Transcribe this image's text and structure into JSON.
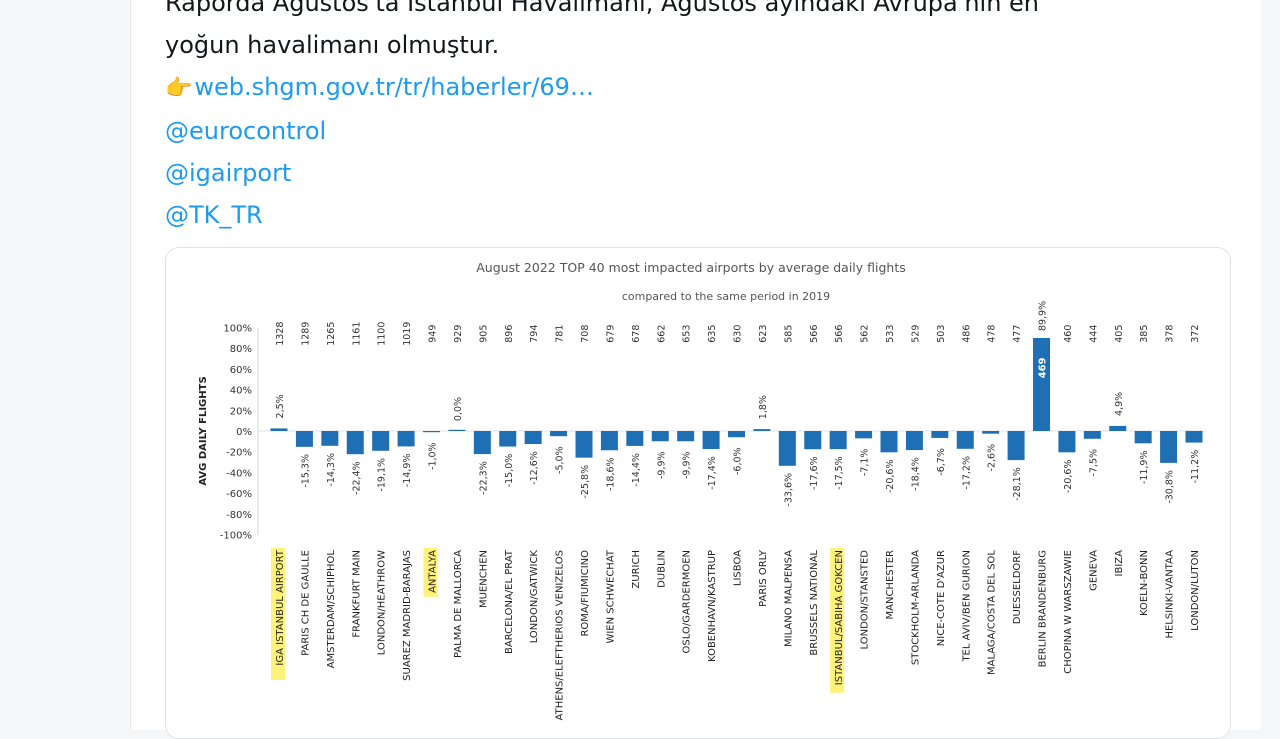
{
  "tweet": {
    "line1": "Raporda Ağustos'ta İstanbul Havalimanı, Ağustos ayındaki Avrupa'nın en",
    "line2": "yoğun havalimanı olmuştur.",
    "link_icon": "pointing-hand-icon",
    "link_text": "web.shgm.gov.tr/tr/haberler/69…",
    "mentions": [
      "@eurocontrol",
      "@igairport",
      "@TK_TR"
    ]
  },
  "colors": {
    "bar": "#1f6fb5",
    "link": "#1d9bf0",
    "highlight": "#fff27a"
  },
  "chart_data": {
    "type": "bar",
    "title": "August 2022 TOP 40 most impacted airports by average daily flights",
    "subtitle": "compared to the same period in 2019",
    "ylabel": "AVG DAILY FLIGHTS",
    "ylim": [
      -100,
      100
    ],
    "yticks": [
      "100%",
      "80%",
      "60%",
      "40%",
      "20%",
      "0%",
      "-20%",
      "-40%",
      "-60%",
      "-80%",
      "-100%"
    ],
    "grid": false,
    "highlighted": [
      "IGA ISTANBUL AIRPORT",
      "ANTALYA",
      "ISTANBUL/SABIHA GOKCEN"
    ],
    "categories": [
      "IGA ISTANBUL AIRPORT",
      "PARIS CH DE GAULLE",
      "AMSTERDAM/SCHIPHOL",
      "FRANKFURT MAIN",
      "LONDON/HEATHROW",
      "SUAREZ MADRID-BARAJAS",
      "ANTALYA",
      "PALMA DE MALLORCA",
      "MUENCHEN",
      "BARCELONA/EL PRAT",
      "LONDON/GATWICK",
      "ATHENS/ELEFTHERIOS VENIZELOS",
      "ROMA/FIUMICINO",
      "WIEN SCHWECHAT",
      "ZURICH",
      "DUBLIN",
      "OSLO/GARDERMOEN",
      "KOBENHAVN/KASTRUP",
      "LISBOA",
      "PARIS ORLY",
      "MILANO MALPENSA",
      "BRUSSELS NATIONAL",
      "ISTANBUL/SABIHA GOKCEN",
      "LONDON/STANSTED",
      "MANCHESTER",
      "STOCKHOLM-ARLANDA",
      "NICE-COTE D'AZUR",
      "TEL AVIV/BEN GURION",
      "MALAGA/COSTA DEL SOL",
      "DUESSELDORF",
      "BERLIN BRANDENBURG",
      "CHOPINA W WARSZAWIE",
      "GENEVA",
      "IBIZA",
      "KOELN-BONN",
      "HELSINKI-VANTAA",
      "LONDON/LUTON"
    ],
    "flights": [
      "1328",
      "1289",
      "1265",
      "1161",
      "1100",
      "1019",
      "949",
      "929",
      "905",
      "896",
      "794",
      "781",
      "708",
      "679",
      "678",
      "662",
      "653",
      "635",
      "630",
      "623",
      "585",
      "566",
      "566",
      "562",
      "533",
      "529",
      "503",
      "486",
      "478",
      "477",
      "469",
      "460",
      "444",
      "405",
      "385",
      "378",
      "372"
    ],
    "values": [
      2.5,
      -15.3,
      -14.3,
      -22.4,
      -19.1,
      -14.9,
      -1.0,
      0.0,
      -22.3,
      -15.0,
      -12.6,
      -5.0,
      -25.8,
      -18.6,
      -14.4,
      -9.9,
      -9.9,
      -17.4,
      -6.0,
      1.8,
      -33.6,
      -17.6,
      -17.5,
      -7.1,
      -20.6,
      -18.4,
      -6.7,
      -17.2,
      -2.6,
      -28.1,
      89.9,
      -20.6,
      -7.5,
      4.9,
      -11.9,
      -30.8,
      -11.2
    ],
    "labels": [
      "2,5%",
      "-15,3%",
      "-14,3%",
      "-22,4%",
      "-19,1%",
      "-14,9%",
      "-1,0%",
      "0,0%",
      "-22,3%",
      "-15,0%",
      "-12,6%",
      "-5,0%",
      "-25,8%",
      "-18,6%",
      "-14,4%",
      "-9,9%",
      "-9,9%",
      "-17,4%",
      "-6,0%",
      "1,8%",
      "-33,6%",
      "-17,6%",
      "-17,5%",
      "-7,1%",
      "-20,6%",
      "-18,4%",
      "-6,7%",
      "-17,2%",
      "-2,6%",
      "-28,1%",
      "89,9%",
      "-20,6%",
      "-7,5%",
      "4,9%",
      "-11,9%",
      "-30,8%",
      "-11,2%"
    ]
  }
}
